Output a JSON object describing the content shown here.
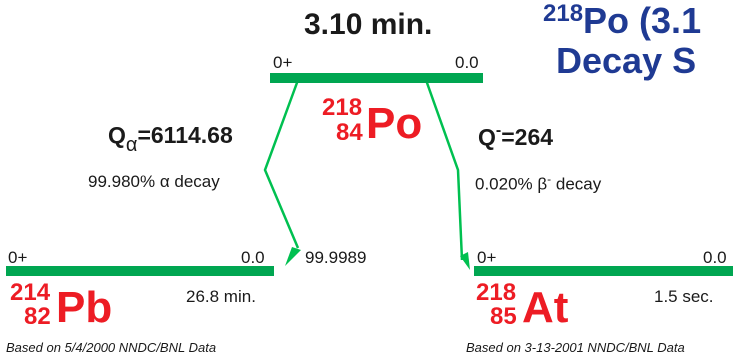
{
  "parent": {
    "halflife": "3.10 min.",
    "spin": "0+",
    "energy": "0.0",
    "mass": "218",
    "z": "84",
    "symbol": "Po"
  },
  "title": {
    "line1_mass": "218",
    "line1_text": "Po (3.1",
    "line2": "Decay S"
  },
  "alpha_branch": {
    "q_label": "Q",
    "q_sub": "α",
    "q_value": "=6114.68",
    "branch_text": "99.980% α decay",
    "intensity": "99.9989",
    "daughter": {
      "spin": "0+",
      "energy": "0.0",
      "halflife": "26.8 min.",
      "mass": "214",
      "z": "82",
      "symbol": "Pb"
    },
    "footer": "Based on 5/4/2000 NNDC/BNL Data"
  },
  "beta_branch": {
    "q_label": "Q",
    "q_sup": "-",
    "q_value": "=264",
    "branch_text": "0.020% β",
    "branch_sup": "-",
    "branch_suffix": " decay",
    "daughter": {
      "spin": "0+",
      "energy": "0.0",
      "halflife": "1.5 sec.",
      "mass": "218",
      "z": "85",
      "symbol": "At"
    },
    "footer": "Based on 3-13-2001 NNDC/BNL Data"
  },
  "colors": {
    "level": "#00a651",
    "nuclide": "#ed1c24",
    "title": "#1f3a93",
    "text": "#1a1a1a"
  }
}
